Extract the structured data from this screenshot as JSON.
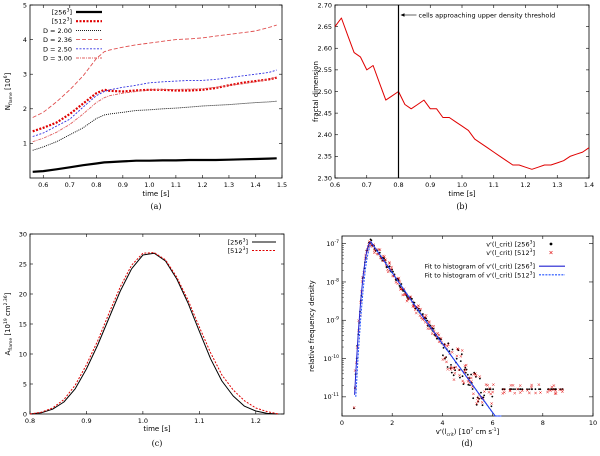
{
  "chart_data": [
    {
      "id": "a",
      "type": "line",
      "caption": "(a)",
      "xlabel": "time [s]",
      "ylabel": "N_flame [10^6]",
      "xlim": [
        0.55,
        1.5
      ],
      "ylim": [
        0,
        5
      ],
      "xticks": [
        "0.6",
        "0.7",
        "0.8",
        "0.9",
        "1.0",
        "1.1",
        "1.2",
        "1.3",
        "1.4",
        "1.5"
      ],
      "yticks": [
        "1",
        "2",
        "3",
        "4",
        "5"
      ],
      "x": [
        0.56,
        0.6,
        0.65,
        0.7,
        0.75,
        0.8,
        0.83,
        0.85,
        0.9,
        0.95,
        1.0,
        1.05,
        1.1,
        1.15,
        1.2,
        1.25,
        1.3,
        1.35,
        1.4,
        1.45,
        1.48
      ],
      "series": [
        {
          "name": "[256³]",
          "color": "#000000",
          "width": 2.2,
          "dash": "",
          "values": [
            0.18,
            0.2,
            0.25,
            0.31,
            0.37,
            0.42,
            0.45,
            0.46,
            0.48,
            0.5,
            0.5,
            0.51,
            0.51,
            0.52,
            0.52,
            0.52,
            0.53,
            0.54,
            0.55,
            0.56,
            0.57
          ]
        },
        {
          "name": "[512³]",
          "color": "#e00000",
          "width": 2.2,
          "dash": "2,1.5",
          "values": [
            1.35,
            1.45,
            1.6,
            1.85,
            2.15,
            2.45,
            2.55,
            2.52,
            2.5,
            2.53,
            2.55,
            2.55,
            2.53,
            2.53,
            2.55,
            2.6,
            2.68,
            2.75,
            2.8,
            2.85,
            2.9
          ]
        },
        {
          "name": "D = 2.00",
          "color": "#000000",
          "width": 0.9,
          "dash": "1,1",
          "values": [
            0.8,
            0.9,
            1.05,
            1.25,
            1.45,
            1.72,
            1.82,
            1.85,
            1.9,
            1.95,
            1.97,
            2.0,
            2.02,
            2.05,
            2.08,
            2.1,
            2.12,
            2.15,
            2.18,
            2.2,
            2.22
          ]
        },
        {
          "name": "D = 2.36",
          "color": "#e05050",
          "width": 0.9,
          "dash": "4,2",
          "values": [
            1.75,
            1.9,
            2.2,
            2.55,
            2.95,
            3.45,
            3.65,
            3.7,
            3.78,
            3.85,
            3.9,
            3.95,
            4.0,
            4.02,
            4.05,
            4.1,
            4.15,
            4.2,
            4.25,
            4.35,
            4.42
          ]
        },
        {
          "name": "D = 2.50",
          "color": "#3030e0",
          "width": 0.9,
          "dash": "2,1.5",
          "values": [
            1.2,
            1.3,
            1.5,
            1.7,
            2.05,
            2.38,
            2.5,
            2.55,
            2.62,
            2.68,
            2.75,
            2.78,
            2.8,
            2.82,
            2.82,
            2.85,
            2.9,
            2.95,
            3.0,
            3.05,
            3.12
          ]
        },
        {
          "name": "D = 3.00",
          "color": "#e06060",
          "width": 0.9,
          "dash": "3,1,1,1",
          "values": [
            1.05,
            1.15,
            1.32,
            1.55,
            1.85,
            2.18,
            2.32,
            2.38,
            2.45,
            2.5,
            2.55,
            2.56,
            2.56,
            2.57,
            2.58,
            2.62,
            2.68,
            2.72,
            2.78,
            2.85,
            2.92
          ]
        }
      ]
    },
    {
      "id": "b",
      "type": "line",
      "caption": "(b)",
      "xlabel": "time [s]",
      "ylabel": "fractal dimension",
      "xlim": [
        0.6,
        1.4
      ],
      "ylim": [
        2.3,
        2.7
      ],
      "xticks": [
        "0.6",
        "0.7",
        "0.8",
        "0.9",
        "1.0",
        "1.1",
        "1.2",
        "1.3",
        "1.4"
      ],
      "yticks": [
        "2.30",
        "2.35",
        "2.40",
        "2.45",
        "2.50",
        "2.55",
        "2.60",
        "2.65",
        "2.70"
      ],
      "annotation": "cells approaching upper density threshold",
      "annotation_x": 0.8,
      "x": [
        0.6,
        0.62,
        0.64,
        0.66,
        0.68,
        0.7,
        0.72,
        0.74,
        0.76,
        0.78,
        0.8,
        0.82,
        0.84,
        0.86,
        0.88,
        0.9,
        0.92,
        0.94,
        0.96,
        0.98,
        1.0,
        1.02,
        1.04,
        1.06,
        1.08,
        1.1,
        1.12,
        1.14,
        1.16,
        1.18,
        1.2,
        1.22,
        1.24,
        1.26,
        1.28,
        1.3,
        1.32,
        1.34,
        1.36,
        1.38,
        1.4
      ],
      "series": [
        {
          "name": "fractal dimension",
          "color": "#e00000",
          "width": 1,
          "dash": "",
          "values": [
            2.65,
            2.67,
            2.63,
            2.59,
            2.58,
            2.55,
            2.56,
            2.52,
            2.48,
            2.49,
            2.5,
            2.47,
            2.46,
            2.47,
            2.48,
            2.46,
            2.46,
            2.44,
            2.44,
            2.43,
            2.42,
            2.41,
            2.39,
            2.38,
            2.37,
            2.36,
            2.35,
            2.34,
            2.33,
            2.33,
            2.325,
            2.32,
            2.325,
            2.33,
            2.33,
            2.335,
            2.34,
            2.35,
            2.355,
            2.36,
            2.37
          ]
        }
      ]
    },
    {
      "id": "c",
      "type": "line",
      "caption": "(c)",
      "xlabel": "time [s]",
      "ylabel": "A_flame [10^19 cm^2.36]",
      "xlim": [
        0.8,
        1.25
      ],
      "ylim": [
        0,
        30
      ],
      "xticks": [
        "0.8",
        "0.9",
        "1.0",
        "1.1",
        "1.2"
      ],
      "yticks": [
        "0",
        "5",
        "10",
        "15",
        "20",
        "25",
        "30"
      ],
      "x": [
        0.8,
        0.82,
        0.84,
        0.86,
        0.88,
        0.9,
        0.92,
        0.94,
        0.96,
        0.98,
        1.0,
        1.02,
        1.04,
        1.06,
        1.08,
        1.1,
        1.12,
        1.14,
        1.16,
        1.18,
        1.2,
        1.22,
        1.24
      ],
      "series": [
        {
          "name": "[256³]",
          "color": "#000000",
          "width": 1,
          "dash": "",
          "values": [
            0,
            0.2,
            0.8,
            2.0,
            4.2,
            7.5,
            11.5,
            16,
            20.5,
            24.2,
            26.5,
            26.8,
            25.5,
            22.5,
            18.5,
            13.8,
            9.2,
            5.5,
            3.0,
            1.3,
            0.5,
            0.1,
            0
          ]
        },
        {
          "name": "[512³]",
          "color": "#e00000",
          "width": 1,
          "dash": "2,1.5",
          "values": [
            0,
            0.3,
            1.0,
            2.4,
            4.8,
            8.2,
            12.2,
            16.8,
            21.2,
            24.8,
            26.8,
            26.9,
            25.7,
            22.8,
            19.0,
            14.5,
            10.2,
            6.5,
            4.0,
            2.2,
            1.0,
            0.4,
            0
          ]
        }
      ]
    },
    {
      "id": "d",
      "type": "scatter",
      "caption": "(d)",
      "xlabel": "v'(l_crit) [10^7 cm s^-1]",
      "ylabel": "relative frequency density",
      "xlim": [
        0,
        10
      ],
      "ylog": [
        -11.5,
        -6.8
      ],
      "xticks": [
        "0",
        "2",
        "4",
        "6",
        "8",
        "10"
      ],
      "yticks": [
        "10^-11",
        "10^-10",
        "10^-9",
        "10^-8",
        "10^-7"
      ],
      "series": [
        {
          "name": "v'(l_crit) [256³]",
          "color": "#000000",
          "marker": "dot"
        },
        {
          "name": "v'(l_crit) [512³]",
          "color": "#e00000",
          "marker": "cross"
        },
        {
          "name": "Fit to histogram of v'(l_crit) [256³]",
          "color": "#2020d0",
          "marker": "line"
        },
        {
          "name": "Fit to histogram of v'(l_crit) [512³]",
          "color": "#2050ff",
          "marker": "dash"
        }
      ]
    }
  ]
}
